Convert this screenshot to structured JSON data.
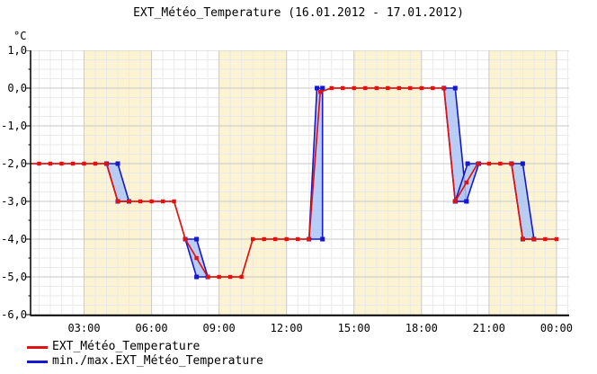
{
  "title": "EXT_Météo_Temperature (16.01.2012 - 17.01.2012)",
  "y_axis": {
    "unit": "°C"
  },
  "legend": [
    {
      "label": "EXT_Météo_Temperature",
      "color": "#e11212"
    },
    {
      "label": "min./max.EXT_Météo_Temperature",
      "color": "#1518cc"
    }
  ],
  "colors": {
    "avg_line": "#e11212",
    "minmax_line": "#1518cc",
    "minmax_fill": "rgba(173,198,245,0.85)",
    "day_band": "#fcf3d2",
    "grid_minor": "#e9e9e9",
    "grid_major": "#c9c9c9",
    "axis": "#000000",
    "background": "#ffffff"
  },
  "chart_data": {
    "type": "line",
    "title": "EXT_Météo_Temperature (16.01.2012 - 17.01.2012)",
    "unit": "°C",
    "ylim": [
      -6,
      1
    ],
    "x_range_hours": [
      0.62,
      24.56
    ],
    "interval_minutes": 30,
    "start_time": "00:30",
    "grid": "on",
    "legend_position": "bottom-left",
    "y_ticks": {
      "values": [
        1,
        0,
        -1,
        -2,
        -3,
        -4,
        -5,
        -6
      ],
      "labels": [
        "1,0",
        "0,0",
        "-1,0",
        "-2,0",
        "-3,0",
        "-4,0",
        "-5,0",
        "-6,0"
      ]
    },
    "x_ticks": {
      "hours": [
        3,
        6,
        9,
        12,
        15,
        18,
        21,
        24
      ],
      "labels": [
        "03:00",
        "06:00",
        "09:00",
        "12:00",
        "15:00",
        "18:00",
        "21:00",
        "00:00"
      ]
    },
    "background_bands_hours": [
      [
        3,
        6
      ],
      [
        9,
        12
      ],
      [
        15,
        18
      ],
      [
        21,
        24
      ]
    ],
    "series": [
      {
        "name": "EXT_Météo_Temperature",
        "color": "#e11212",
        "marker": "square",
        "points_hour_value": [
          [
            0.5,
            -2
          ],
          [
            1,
            -2
          ],
          [
            1.5,
            -2
          ],
          [
            2,
            -2
          ],
          [
            2.5,
            -2
          ],
          [
            3,
            -2
          ],
          [
            3.5,
            -2
          ],
          [
            4,
            -2
          ],
          [
            4.5,
            -3
          ],
          [
            5,
            -3
          ],
          [
            5.5,
            -3
          ],
          [
            6,
            -3
          ],
          [
            6.5,
            -3
          ],
          [
            7,
            -3
          ],
          [
            7.5,
            -4
          ],
          [
            8,
            -4.5
          ],
          [
            8.5,
            -5
          ],
          [
            9,
            -5
          ],
          [
            9.5,
            -5
          ],
          [
            10,
            -5
          ],
          [
            10.5,
            -4
          ],
          [
            11,
            -4
          ],
          [
            11.5,
            -4
          ],
          [
            12,
            -4
          ],
          [
            12.5,
            -4
          ],
          [
            13,
            -4
          ],
          [
            13.5,
            -0.1
          ],
          [
            14,
            0
          ],
          [
            14.5,
            0
          ],
          [
            15,
            0
          ],
          [
            15.5,
            0
          ],
          [
            16,
            0
          ],
          [
            16.5,
            0
          ],
          [
            17,
            0
          ],
          [
            17.5,
            0
          ],
          [
            18,
            0
          ],
          [
            18.5,
            0
          ],
          [
            19,
            0
          ],
          [
            19.5,
            -3
          ],
          [
            20,
            -2.5
          ],
          [
            20.5,
            -2
          ],
          [
            21,
            -2
          ],
          [
            21.5,
            -2
          ],
          [
            22,
            -2
          ],
          [
            22.5,
            -4
          ],
          [
            23,
            -4
          ],
          [
            23.5,
            -4
          ],
          [
            24,
            -4
          ]
        ]
      }
    ],
    "minmax_band": {
      "name": "min./max.EXT_Météo_Temperature",
      "line_color": "#1518cc",
      "fill_color": "rgba(173,198,245,0.85)",
      "polygons_hour_value": [
        [
          [
            4,
            -2
          ],
          [
            4.5,
            -2
          ],
          [
            5,
            -3
          ],
          [
            4.5,
            -3
          ]
        ],
        [
          [
            7.5,
            -4
          ],
          [
            8,
            -4
          ],
          [
            8.5,
            -5
          ],
          [
            8,
            -5
          ]
        ],
        [
          [
            13,
            -4
          ],
          [
            13.35,
            0
          ],
          [
            13.6,
            0
          ],
          [
            13.6,
            -4
          ]
        ],
        [
          [
            19,
            0
          ],
          [
            19.5,
            0
          ],
          [
            20,
            -3
          ],
          [
            19.5,
            -3
          ]
        ],
        [
          [
            19.5,
            -3
          ],
          [
            20,
            -3
          ],
          [
            20.55,
            -2
          ],
          [
            20.05,
            -2
          ]
        ],
        [
          [
            22,
            -2
          ],
          [
            22.5,
            -2
          ],
          [
            23,
            -4
          ],
          [
            22.5,
            -4
          ]
        ]
      ]
    }
  }
}
